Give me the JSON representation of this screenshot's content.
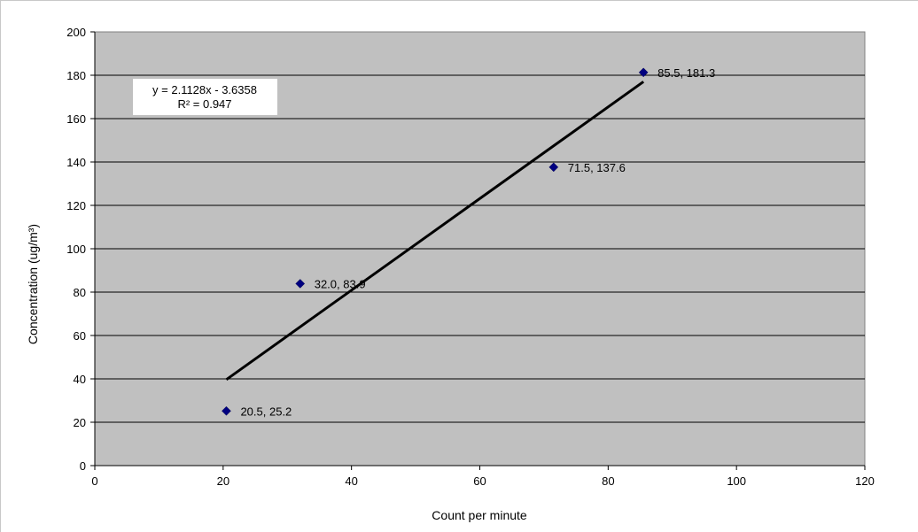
{
  "chart_data": {
    "type": "scatter",
    "title": "",
    "xlabel": "Count per minute",
    "ylabel": "Concentration (ug/m³)",
    "xlim": [
      0,
      120
    ],
    "ylim": [
      0,
      200
    ],
    "xticks": [
      0,
      20,
      40,
      60,
      80,
      100,
      120
    ],
    "yticks": [
      0,
      20,
      40,
      60,
      80,
      100,
      120,
      140,
      160,
      180,
      200
    ],
    "grid": "horizontal",
    "background": "#c0c0c0",
    "point_color": "#000080",
    "series": [
      {
        "marker": "diamond",
        "points": [
          {
            "x": 20.5,
            "y": 25.2,
            "label": "20.5, 25.2"
          },
          {
            "x": 32.0,
            "y": 83.9,
            "label": "32.0, 83.9"
          },
          {
            "x": 71.5,
            "y": 137.6,
            "label": "71.5, 137.6"
          },
          {
            "x": 85.5,
            "y": 181.3,
            "label": "85.5, 181.3"
          }
        ]
      }
    ],
    "trendline": {
      "slope": 2.1128,
      "intercept": -3.6358,
      "x_range": [
        20.5,
        85.5
      ],
      "color": "#000000",
      "equation": "y = 2.1128x - 3.6358",
      "r_squared": "R² = 0.947"
    }
  }
}
